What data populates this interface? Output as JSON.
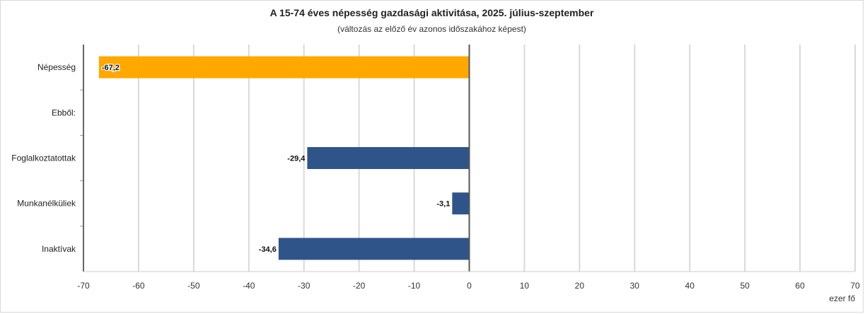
{
  "chart_data": {
    "type": "bar",
    "orientation": "horizontal",
    "title": "A 15-74 éves népesség gazdasági aktivitása, 2025. július-szeptember",
    "subtitle": "(változás az előző év azonos időszakához képest)",
    "categories": [
      "Népesség",
      "Ebből:",
      "Foglalkoztatottak",
      "Munkanélküliek",
      "Inaktívak"
    ],
    "values": [
      -67.2,
      null,
      -29.4,
      -3.1,
      -34.6
    ],
    "value_labels": [
      "-67,2",
      "",
      "-29,4",
      "-3,1",
      "-34,6"
    ],
    "bar_colors": [
      "#FFA800",
      null,
      "#2F5489",
      "#2F5489",
      "#2F5489"
    ],
    "xlim": [
      -70,
      70
    ],
    "xticks": [
      -70,
      -60,
      -50,
      -40,
      -30,
      -20,
      -10,
      0,
      10,
      20,
      30,
      40,
      50,
      60,
      70
    ],
    "xlabel": "ezer fő",
    "ylabel": "",
    "grid": true,
    "legend": "none"
  }
}
